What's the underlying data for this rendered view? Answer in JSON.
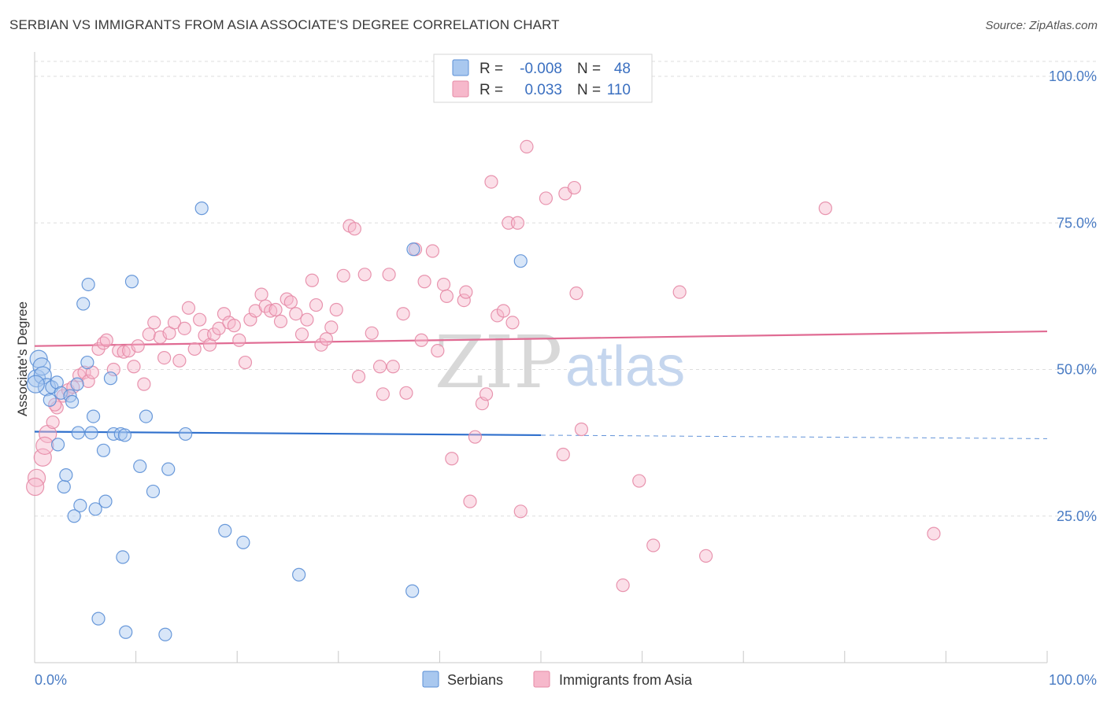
{
  "title": "SERBIAN VS IMMIGRANTS FROM ASIA ASSOCIATE'S DEGREE CORRELATION CHART",
  "source": "Source: ZipAtlas.com",
  "watermark": {
    "zip": "ZIP",
    "atlas": "atlas"
  },
  "legend": {
    "rows": [
      {
        "r_label": "R =",
        "r_value": "-0.008",
        "n_label": "N =",
        "n_value": "48"
      },
      {
        "r_label": "R =",
        "r_value": "0.033",
        "n_label": "N =",
        "n_value": "110"
      }
    ]
  },
  "bottom_legend": [
    "Serbians",
    "Immigrants from Asia"
  ],
  "colors": {
    "serbians_fill": "#a9c8ef",
    "serbians_stroke": "#5b8fd6",
    "serbians_line": "#2e6fcc",
    "asia_fill": "#f6b8cb",
    "asia_stroke": "#e58aa6",
    "asia_line": "#e06b93",
    "grid": "#dddddd",
    "tick_label": "#4a7cc4"
  },
  "chart_data": {
    "type": "scatter",
    "title": "SERBIAN VS IMMIGRANTS FROM ASIA ASSOCIATE'S DEGREE CORRELATION CHART",
    "xlabel": "",
    "ylabel": "Associate's Degree",
    "xlim": [
      0,
      100
    ],
    "ylim": [
      0,
      100
    ],
    "x_tick_labels": [
      "0.0%",
      "100.0%"
    ],
    "y_ticks": [
      25,
      50,
      75,
      100
    ],
    "y_tick_labels": [
      "25.0%",
      "50.0%",
      "75.0%",
      "100.0%"
    ],
    "grid": "horizontal dashed",
    "legend_position": "top-center",
    "series": [
      {
        "name": "Serbians",
        "r": -0.008,
        "n": 48,
        "trend": {
          "x0": 0,
          "y0": 39.4,
          "x1": 50,
          "y1": 38.8,
          "dashed_to_x": 100,
          "dashed_to_y": 38.2
        },
        "points": [
          [
            0.2,
            48.5
          ],
          [
            0.4,
            51.8
          ],
          [
            0.7,
            50.5
          ],
          [
            0.8,
            49.0
          ],
          [
            1.2,
            47.0
          ],
          [
            1.5,
            44.8
          ],
          [
            1.7,
            47.0
          ],
          [
            2.2,
            47.8
          ],
          [
            2.3,
            37.2
          ],
          [
            2.6,
            46.0
          ],
          [
            2.9,
            30.0
          ],
          [
            3.1,
            32.0
          ],
          [
            3.5,
            45.5
          ],
          [
            3.7,
            44.5
          ],
          [
            3.9,
            25.0
          ],
          [
            4.2,
            47.5
          ],
          [
            4.3,
            39.2
          ],
          [
            4.5,
            26.8
          ],
          [
            4.8,
            61.2
          ],
          [
            5.2,
            51.2
          ],
          [
            5.3,
            64.5
          ],
          [
            5.6,
            39.2
          ],
          [
            5.8,
            42.0
          ],
          [
            6.0,
            26.2
          ],
          [
            6.3,
            7.5
          ],
          [
            6.8,
            36.2
          ],
          [
            7.0,
            27.5
          ],
          [
            7.5,
            48.5
          ],
          [
            7.8,
            39.0
          ],
          [
            8.5,
            39.0
          ],
          [
            8.7,
            18.0
          ],
          [
            8.9,
            38.8
          ],
          [
            9.0,
            5.2
          ],
          [
            9.6,
            65.0
          ],
          [
            10.4,
            33.5
          ],
          [
            11.0,
            42.0
          ],
          [
            11.7,
            29.2
          ],
          [
            12.9,
            4.8
          ],
          [
            13.2,
            33.0
          ],
          [
            14.9,
            39.0
          ],
          [
            16.5,
            77.5
          ],
          [
            18.8,
            22.5
          ],
          [
            20.6,
            20.5
          ],
          [
            26.1,
            15.0
          ],
          [
            37.3,
            12.2
          ],
          [
            37.4,
            70.5
          ],
          [
            48.0,
            68.5
          ],
          [
            0.1,
            47.5
          ]
        ]
      },
      {
        "name": "Immigrants from Asia",
        "r": 0.033,
        "n": 110,
        "trend": {
          "x0": 0,
          "y0": 54.0,
          "x1": 100,
          "y1": 56.5
        },
        "points": [
          [
            0.2,
            31.5
          ],
          [
            0.8,
            35.0
          ],
          [
            1.3,
            39.0
          ],
          [
            1.8,
            41.0
          ],
          [
            2.2,
            43.5
          ],
          [
            2.8,
            45.5
          ],
          [
            3.3,
            46.5
          ],
          [
            3.8,
            47.0
          ],
          [
            4.4,
            49.0
          ],
          [
            4.9,
            49.5
          ],
          [
            5.3,
            48.0
          ],
          [
            5.7,
            49.5
          ],
          [
            6.3,
            53.5
          ],
          [
            6.8,
            54.5
          ],
          [
            7.1,
            55.0
          ],
          [
            7.8,
            50.0
          ],
          [
            8.3,
            53.2
          ],
          [
            8.8,
            53.0
          ],
          [
            9.3,
            53.2
          ],
          [
            9.8,
            50.5
          ],
          [
            10.2,
            54.0
          ],
          [
            10.8,
            47.5
          ],
          [
            11.3,
            56.0
          ],
          [
            11.8,
            58.0
          ],
          [
            12.4,
            55.5
          ],
          [
            12.8,
            52.0
          ],
          [
            13.3,
            56.2
          ],
          [
            13.8,
            58.0
          ],
          [
            14.3,
            51.5
          ],
          [
            14.8,
            57.0
          ],
          [
            15.2,
            60.5
          ],
          [
            15.8,
            53.5
          ],
          [
            16.3,
            58.5
          ],
          [
            16.8,
            55.8
          ],
          [
            17.3,
            54.2
          ],
          [
            17.7,
            56.0
          ],
          [
            18.2,
            57.0
          ],
          [
            18.7,
            59.5
          ],
          [
            19.2,
            58.0
          ],
          [
            19.7,
            57.5
          ],
          [
            20.2,
            55.0
          ],
          [
            20.8,
            51.2
          ],
          [
            21.3,
            58.5
          ],
          [
            21.8,
            60.0
          ],
          [
            22.4,
            62.8
          ],
          [
            22.8,
            60.8
          ],
          [
            23.3,
            60.0
          ],
          [
            23.8,
            60.2
          ],
          [
            24.3,
            58.2
          ],
          [
            24.9,
            62.0
          ],
          [
            25.3,
            61.5
          ],
          [
            25.8,
            59.5
          ],
          [
            26.4,
            56.0
          ],
          [
            26.9,
            58.5
          ],
          [
            27.4,
            65.2
          ],
          [
            27.8,
            61.0
          ],
          [
            28.3,
            54.2
          ],
          [
            28.8,
            55.2
          ],
          [
            29.3,
            57.2
          ],
          [
            29.8,
            60.2
          ],
          [
            30.5,
            66.0
          ],
          [
            31.1,
            74.5
          ],
          [
            31.6,
            74.0
          ],
          [
            32.0,
            48.8
          ],
          [
            32.6,
            66.2
          ],
          [
            33.3,
            56.2
          ],
          [
            34.1,
            50.5
          ],
          [
            34.4,
            45.8
          ],
          [
            35.0,
            66.2
          ],
          [
            35.4,
            50.5
          ],
          [
            36.4,
            59.5
          ],
          [
            36.7,
            46.0
          ],
          [
            37.6,
            70.5
          ],
          [
            38.2,
            55.0
          ],
          [
            38.5,
            65.0
          ],
          [
            39.3,
            70.2
          ],
          [
            39.8,
            53.2
          ],
          [
            40.4,
            64.5
          ],
          [
            40.7,
            62.5
          ],
          [
            41.2,
            34.8
          ],
          [
            42.4,
            61.8
          ],
          [
            42.6,
            63.2
          ],
          [
            43.0,
            27.5
          ],
          [
            43.5,
            38.5
          ],
          [
            44.2,
            44.2
          ],
          [
            44.6,
            45.8
          ],
          [
            45.1,
            82.0
          ],
          [
            45.7,
            59.2
          ],
          [
            46.3,
            60.0
          ],
          [
            46.8,
            75.0
          ],
          [
            47.2,
            58.0
          ],
          [
            47.7,
            75.0
          ],
          [
            48.0,
            25.8
          ],
          [
            48.6,
            88.0
          ],
          [
            50.5,
            79.2
          ],
          [
            52.2,
            35.5
          ],
          [
            52.4,
            80.0
          ],
          [
            53.3,
            81.0
          ],
          [
            53.5,
            63.0
          ],
          [
            54.0,
            39.8
          ],
          [
            58.1,
            13.2
          ],
          [
            59.7,
            31.0
          ],
          [
            61.1,
            20.0
          ],
          [
            63.7,
            63.2
          ],
          [
            66.3,
            18.2
          ],
          [
            78.1,
            77.5
          ],
          [
            88.8,
            22.0
          ],
          [
            0.05,
            30.0
          ],
          [
            1.0,
            37.0
          ],
          [
            2.0,
            44.0
          ]
        ]
      }
    ]
  }
}
